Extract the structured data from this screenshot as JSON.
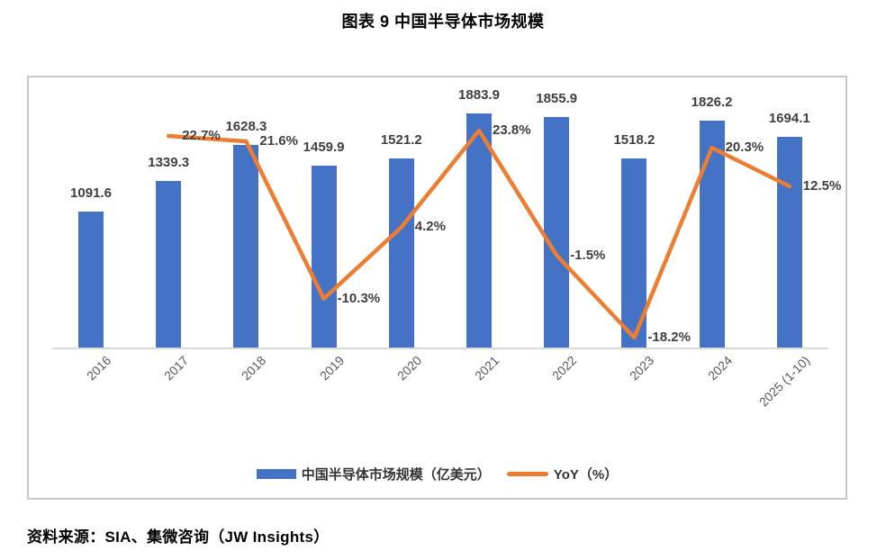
{
  "title": "图表 9 中国半导体市场规模",
  "source": "资料来源：SIA、集微咨询（JW Insights）",
  "colors": {
    "bar": "#4472C4",
    "line": "#ED7D31",
    "data_label": "#3f3f3f",
    "axis_label": "#595959",
    "axis_line": "#d9d9d9",
    "box_border": "#c8c8c8"
  },
  "chart_data": {
    "type": "bar",
    "subtype": "bar-line-combo",
    "title": "图表 9 中国半导体市场规模",
    "categories": [
      "2016",
      "2017",
      "2018",
      "2019",
      "2020",
      "2021",
      "2022",
      "2023",
      "2024",
      "2025 (1-10)"
    ],
    "series": [
      {
        "name": "中国半导体市场规模（亿美元）",
        "type": "bar",
        "color": "#4472C4",
        "values": [
          1091.6,
          1339.3,
          1628.3,
          1459.9,
          1521.2,
          1883.9,
          1855.9,
          1518.2,
          1826.2,
          1694.1
        ],
        "labels": [
          "1091.6",
          "1339.3",
          "1628.3",
          "1459.9",
          "1521.2",
          "1883.9",
          "1855.9",
          "1518.2",
          "1826.2",
          "1694.1"
        ]
      },
      {
        "name": "YoY（%）",
        "type": "line",
        "color": "#ED7D31",
        "values": [
          null,
          22.7,
          21.6,
          -10.3,
          4.2,
          23.8,
          -1.5,
          -18.2,
          20.3,
          12.5
        ],
        "labels": [
          null,
          "22.7%",
          "21.6%",
          "-10.3%",
          "4.2%",
          "23.8%",
          "-1.5%",
          "-18.2%",
          "20.3%",
          "12.5%"
        ]
      }
    ],
    "xlabel": "",
    "ylabel": "",
    "value_axis_visible": false,
    "grid": false,
    "legend_position": "bottom",
    "data_labels": true
  }
}
